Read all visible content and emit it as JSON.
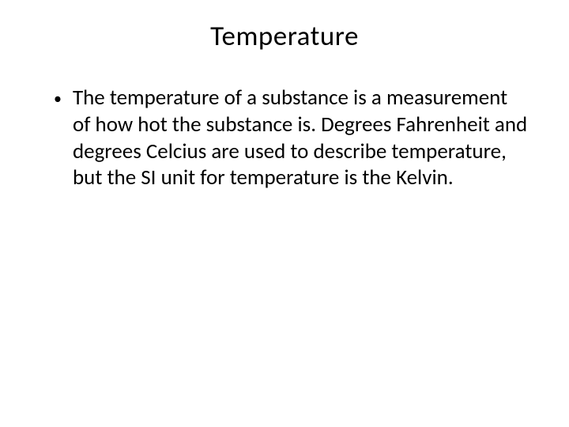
{
  "slide": {
    "title": "Temperature",
    "bullets": [
      {
        "text": "The temperature of a substance is a measurement of how hot the substance is. Degrees Fahrenheit and degrees Celcius are used to describe temperature, but the SI unit for temperature is the Kelvin."
      }
    ]
  },
  "style": {
    "background_color": "#ffffff",
    "text_color": "#000000",
    "title_fontsize": 35,
    "body_fontsize": 27,
    "font_family": "Calibri"
  }
}
